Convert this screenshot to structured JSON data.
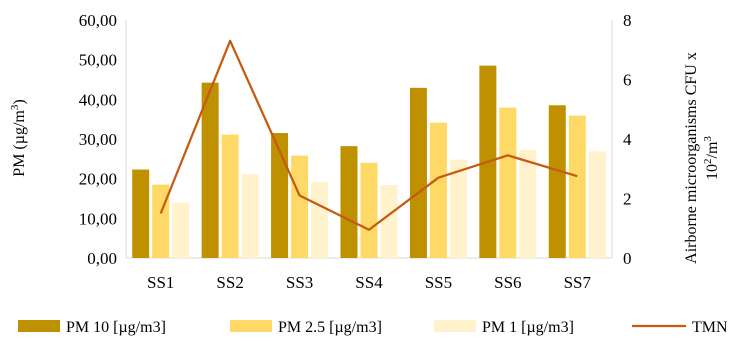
{
  "chart_data": {
    "type": "bar",
    "categories": [
      "SS1",
      "SS2",
      "SS3",
      "SS4",
      "SS5",
      "SS6",
      "SS7"
    ],
    "series": [
      {
        "name": "PM 10 [µg/m3]",
        "values": [
          22.3,
          44.2,
          31.5,
          28.2,
          42.9,
          48.5,
          38.5
        ],
        "color": "#bf9000"
      },
      {
        "name": "PM 2.5 [µg/m3]",
        "values": [
          18.5,
          31.1,
          25.8,
          24.0,
          34.1,
          37.9,
          35.9
        ],
        "color": "#ffd966"
      },
      {
        "name": "PM 1 [µg/m3]",
        "values": [
          14.0,
          21.1,
          19.1,
          18.4,
          24.8,
          27.3,
          26.9
        ],
        "color": "#fff2cc"
      }
    ],
    "line_series": {
      "name": "TMN",
      "axis": "right",
      "values": [
        1.5,
        7.3,
        2.1,
        0.95,
        2.7,
        3.45,
        2.75
      ],
      "color": "#c55a11"
    },
    "ylabel_prefix": "PM (µg/m",
    "ylabel_sup": "3",
    "ylabel_suffix": ")",
    "y2label_line1": "Airborne microorganisms CFU x",
    "y2label_line2_base": "10",
    "y2label_line2_sup1": "2",
    "y2label_line2_mid": "/m",
    "y2label_line2_sup2": "3",
    "ylim": [
      0,
      60
    ],
    "yticks": [
      "0,00",
      "10,00",
      "20,00",
      "30,00",
      "40,00",
      "50,00",
      "60,00"
    ],
    "y2lim": [
      0,
      8
    ],
    "y2ticks": [
      "0",
      "2",
      "4",
      "6",
      "8"
    ],
    "legend_position": "bottom",
    "grid": false
  }
}
